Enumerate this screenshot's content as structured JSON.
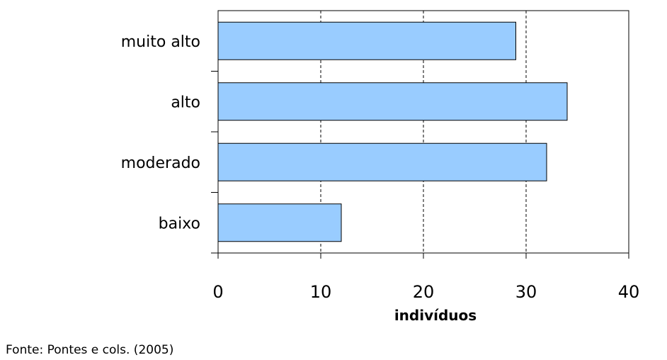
{
  "chart_data": {
    "type": "bar",
    "orientation": "horizontal",
    "categories": [
      "muito alto",
      "alto",
      "moderado",
      "baixo"
    ],
    "values": [
      29,
      34,
      32,
      12
    ],
    "xlabel": "indivíduos",
    "ylabel": "",
    "xlim": [
      0,
      40
    ],
    "xticks": [
      0,
      10,
      20,
      30,
      40
    ],
    "grid": "vertical dashed",
    "bar_color": "#99ccff"
  },
  "source": "Fonte: Pontes e cols. (2005)"
}
